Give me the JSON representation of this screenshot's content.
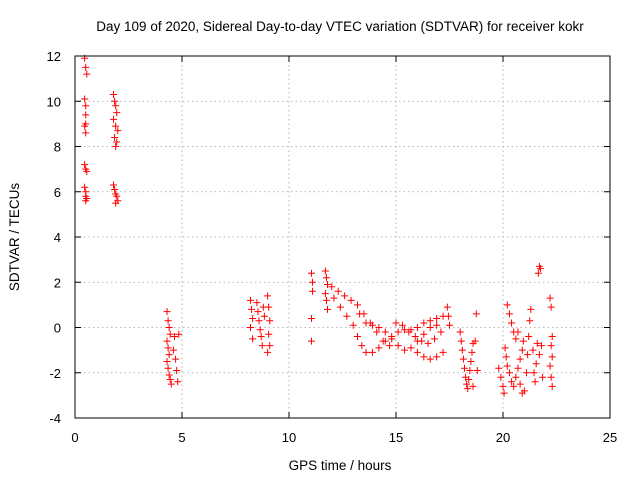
{
  "chart_data": {
    "type": "scatter",
    "title": "Day 109 of 2020, Sidereal Day-to-day VTEC variation (SDTVAR) for receiver kokr",
    "xlabel": "GPS time / hours",
    "ylabel": "SDTVAR / TECUs",
    "xlim": [
      0,
      25
    ],
    "ylim": [
      -4,
      12
    ],
    "xticks": [
      "0",
      "5",
      "10",
      "15",
      "20",
      "25"
    ],
    "yticks": [
      "-4",
      "-2",
      "0",
      "2",
      "4",
      "6",
      "8",
      "10",
      "12"
    ],
    "grid": true,
    "marker": "+",
    "marker_color": "#ff0000",
    "series": [
      {
        "name": "SDTVAR",
        "points": [
          [
            0.45,
            11.9
          ],
          [
            0.5,
            11.5
          ],
          [
            0.55,
            11.2
          ],
          [
            0.45,
            10.1
          ],
          [
            0.5,
            9.8
          ],
          [
            0.5,
            9.4
          ],
          [
            0.5,
            9.0
          ],
          [
            0.45,
            8.9
          ],
          [
            0.5,
            8.6
          ],
          [
            0.45,
            7.2
          ],
          [
            0.5,
            7.0
          ],
          [
            0.55,
            6.9
          ],
          [
            0.45,
            6.2
          ],
          [
            0.5,
            6.0
          ],
          [
            0.5,
            5.8
          ],
          [
            0.55,
            5.7
          ],
          [
            0.5,
            5.6
          ],
          [
            1.8,
            10.3
          ],
          [
            1.85,
            10.0
          ],
          [
            1.9,
            9.8
          ],
          [
            1.95,
            9.5
          ],
          [
            1.8,
            9.2
          ],
          [
            1.9,
            8.9
          ],
          [
            2.0,
            8.7
          ],
          [
            1.85,
            8.4
          ],
          [
            1.95,
            8.2
          ],
          [
            1.9,
            8.0
          ],
          [
            1.8,
            6.3
          ],
          [
            1.85,
            6.1
          ],
          [
            1.9,
            5.9
          ],
          [
            1.95,
            5.8
          ],
          [
            2.0,
            5.6
          ],
          [
            1.9,
            5.5
          ],
          [
            4.3,
            0.7
          ],
          [
            4.35,
            0.3
          ],
          [
            4.4,
            0.0
          ],
          [
            4.45,
            -0.3
          ],
          [
            4.3,
            -0.6
          ],
          [
            4.35,
            -0.9
          ],
          [
            4.4,
            -1.2
          ],
          [
            4.3,
            -1.5
          ],
          [
            4.35,
            -1.8
          ],
          [
            4.4,
            -2.1
          ],
          [
            4.45,
            -2.3
          ],
          [
            4.5,
            -2.5
          ],
          [
            4.6,
            -1.0
          ],
          [
            4.65,
            -0.4
          ],
          [
            4.7,
            -1.4
          ],
          [
            4.75,
            -1.9
          ],
          [
            4.8,
            -2.4
          ],
          [
            4.85,
            -0.3
          ],
          [
            8.2,
            1.2
          ],
          [
            8.25,
            0.8
          ],
          [
            8.3,
            0.4
          ],
          [
            8.2,
            0.0
          ],
          [
            8.3,
            -0.5
          ],
          [
            8.5,
            1.1
          ],
          [
            8.55,
            0.7
          ],
          [
            8.6,
            0.3
          ],
          [
            8.65,
            -0.1
          ],
          [
            8.7,
            -0.4
          ],
          [
            8.75,
            -0.8
          ],
          [
            8.8,
            0.9
          ],
          [
            8.85,
            0.5
          ],
          [
            9.0,
            1.4
          ],
          [
            9.05,
            0.9
          ],
          [
            9.1,
            0.3
          ],
          [
            9.05,
            -0.3
          ],
          [
            9.1,
            -0.8
          ],
          [
            9.0,
            -1.1
          ],
          [
            11.05,
            2.4
          ],
          [
            11.1,
            2.0
          ],
          [
            11.1,
            1.6
          ],
          [
            11.05,
            0.4
          ],
          [
            11.05,
            -0.6
          ],
          [
            11.7,
            2.5
          ],
          [
            11.75,
            2.2
          ],
          [
            11.8,
            1.9
          ],
          [
            11.7,
            1.5
          ],
          [
            11.75,
            1.2
          ],
          [
            11.8,
            0.8
          ],
          [
            12.0,
            1.8
          ],
          [
            12.3,
            1.6
          ],
          [
            12.6,
            1.4
          ],
          [
            12.9,
            1.2
          ],
          [
            13.2,
            1.0
          ],
          [
            13.5,
            0.6
          ],
          [
            13.8,
            0.2
          ],
          [
            14.1,
            -0.2
          ],
          [
            14.4,
            -0.6
          ],
          [
            14.7,
            -0.8
          ],
          [
            12.1,
            1.3
          ],
          [
            12.4,
            0.9
          ],
          [
            12.7,
            0.5
          ],
          [
            13.0,
            0.1
          ],
          [
            13.2,
            -0.4
          ],
          [
            13.4,
            -0.8
          ],
          [
            13.6,
            -1.1
          ],
          [
            13.9,
            -1.1
          ],
          [
            14.2,
            -0.9
          ],
          [
            14.5,
            -0.6
          ],
          [
            14.8,
            -0.4
          ],
          [
            15.1,
            -0.2
          ],
          [
            15.4,
            -0.1
          ],
          [
            15.7,
            -0.1
          ],
          [
            16.0,
            0.0
          ],
          [
            16.3,
            0.2
          ],
          [
            16.6,
            0.3
          ],
          [
            16.9,
            0.4
          ],
          [
            17.2,
            0.5
          ],
          [
            13.3,
            0.6
          ],
          [
            13.6,
            0.2
          ],
          [
            13.9,
            0.1
          ],
          [
            14.2,
            0.0
          ],
          [
            14.5,
            -0.2
          ],
          [
            14.8,
            -0.5
          ],
          [
            15.1,
            -0.8
          ],
          [
            15.4,
            -1.0
          ],
          [
            15.7,
            -0.9
          ],
          [
            16.0,
            -0.6
          ],
          [
            16.3,
            -0.3
          ],
          [
            16.6,
            0.0
          ],
          [
            16.9,
            0.1
          ],
          [
            15.0,
            0.2
          ],
          [
            15.3,
            0.1
          ],
          [
            15.6,
            -0.2
          ],
          [
            15.9,
            -0.4
          ],
          [
            16.2,
            -0.6
          ],
          [
            16.5,
            -0.7
          ],
          [
            16.8,
            -0.5
          ],
          [
            17.1,
            -0.2
          ],
          [
            16.0,
            -1.1
          ],
          [
            16.3,
            -1.3
          ],
          [
            16.6,
            -1.4
          ],
          [
            16.9,
            -1.3
          ],
          [
            17.2,
            -1.1
          ],
          [
            17.4,
            0.9
          ],
          [
            17.45,
            0.5
          ],
          [
            17.5,
            0.1
          ],
          [
            18.0,
            -0.2
          ],
          [
            18.05,
            -0.6
          ],
          [
            18.1,
            -1.0
          ],
          [
            18.15,
            -1.4
          ],
          [
            18.2,
            -1.8
          ],
          [
            18.25,
            -2.2
          ],
          [
            18.3,
            -2.5
          ],
          [
            18.35,
            -2.7
          ],
          [
            18.4,
            -2.3
          ],
          [
            18.45,
            -1.9
          ],
          [
            18.5,
            -1.5
          ],
          [
            18.55,
            -1.1
          ],
          [
            18.6,
            -0.7
          ],
          [
            18.6,
            -2.6
          ],
          [
            18.7,
            -0.6
          ],
          [
            18.75,
            0.6
          ],
          [
            18.8,
            -1.9
          ],
          [
            19.8,
            -1.8
          ],
          [
            19.9,
            -2.2
          ],
          [
            20.0,
            -2.6
          ],
          [
            20.05,
            -2.9
          ],
          [
            20.1,
            -0.9
          ],
          [
            20.15,
            -1.3
          ],
          [
            20.2,
            -1.7
          ],
          [
            20.3,
            -2.0
          ],
          [
            20.4,
            -2.4
          ],
          [
            20.5,
            -2.6
          ],
          [
            20.6,
            -2.2
          ],
          [
            20.7,
            -1.8
          ],
          [
            20.8,
            -1.4
          ],
          [
            20.9,
            -1.0
          ],
          [
            20.95,
            -0.6
          ],
          [
            20.2,
            1.0
          ],
          [
            20.3,
            0.6
          ],
          [
            20.4,
            0.2
          ],
          [
            20.5,
            -0.2
          ],
          [
            20.6,
            -0.5
          ],
          [
            20.7,
            -0.2
          ],
          [
            20.8,
            -2.5
          ],
          [
            20.9,
            -2.9
          ],
          [
            21.0,
            -2.8
          ],
          [
            21.1,
            -2.0
          ],
          [
            21.15,
            -1.2
          ],
          [
            21.2,
            -0.4
          ],
          [
            21.25,
            0.3
          ],
          [
            21.3,
            0.8
          ],
          [
            21.4,
            -1.0
          ],
          [
            21.45,
            -2.0
          ],
          [
            21.5,
            -2.4
          ],
          [
            21.55,
            -1.6
          ],
          [
            21.6,
            -0.7
          ],
          [
            21.65,
            2.4
          ],
          [
            21.7,
            2.7
          ],
          [
            21.75,
            2.6
          ],
          [
            21.7,
            -1.2
          ],
          [
            21.8,
            -0.8
          ],
          [
            21.85,
            -2.2
          ],
          [
            22.2,
            1.3
          ],
          [
            22.25,
            0.9
          ],
          [
            22.3,
            -0.4
          ],
          [
            22.25,
            -0.8
          ],
          [
            22.3,
            -1.3
          ],
          [
            22.2,
            -1.7
          ],
          [
            22.25,
            -2.2
          ],
          [
            22.3,
            -2.6
          ]
        ]
      }
    ]
  }
}
